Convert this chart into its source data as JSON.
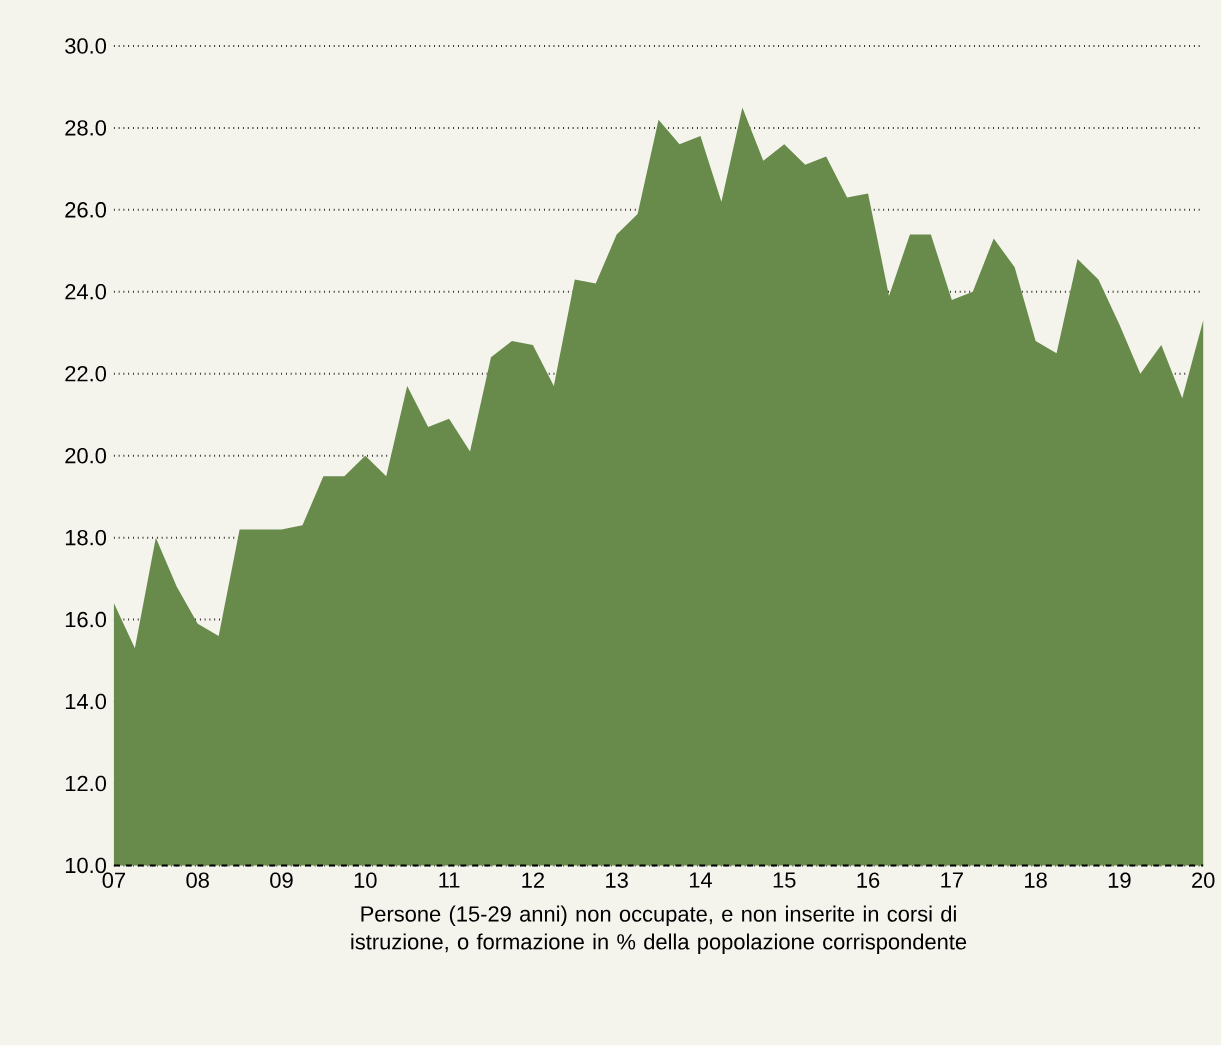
{
  "chart_data": {
    "type": "area",
    "xlabel": "Persone (15-29 anni) non occupate, e non inserite in corsi di istruzione, o formazione in % della popolazione corrispondente",
    "x": [
      2007,
      2007.25,
      2007.5,
      2007.75,
      2008,
      2008.25,
      2008.5,
      2008.75,
      2009,
      2009.25,
      2009.5,
      2009.75,
      2010,
      2010.25,
      2010.5,
      2010.75,
      2011,
      2011.25,
      2011.5,
      2011.75,
      2012,
      2012.25,
      2012.5,
      2012.75,
      2013,
      2013.25,
      2013.5,
      2013.75,
      2014,
      2014.25,
      2014.5,
      2014.75,
      2015,
      2015.25,
      2015.5,
      2015.75,
      2016,
      2016.25,
      2016.5,
      2016.75,
      2017,
      2017.25,
      2017.5,
      2017.75,
      2018,
      2018.25,
      2018.5,
      2018.75,
      2019,
      2019.25,
      2019.5,
      2019.75,
      2020
    ],
    "values": [
      16.4,
      15.3,
      18.0,
      16.8,
      15.9,
      15.6,
      18.2,
      18.2,
      18.2,
      18.3,
      19.5,
      19.5,
      20.0,
      19.5,
      21.7,
      20.7,
      20.9,
      20.1,
      22.4,
      22.8,
      22.7,
      21.7,
      24.3,
      24.2,
      25.4,
      25.9,
      28.2,
      27.6,
      27.8,
      26.2,
      28.5,
      27.2,
      27.6,
      27.1,
      27.3,
      26.3,
      26.4,
      23.9,
      25.4,
      25.4,
      23.8,
      24.0,
      25.3,
      24.6,
      22.8,
      22.5,
      24.8,
      24.3,
      23.2,
      22.0,
      22.7,
      21.4,
      23.3
    ],
    "color": "#688b4b",
    "xlim": [
      2007,
      2020
    ],
    "ylim": [
      10,
      30
    ],
    "xticks": [
      {
        "value": 2007,
        "label": "07"
      },
      {
        "value": 2008,
        "label": "08"
      },
      {
        "value": 2009,
        "label": "09"
      },
      {
        "value": 2010,
        "label": "10"
      },
      {
        "value": 2011,
        "label": "11"
      },
      {
        "value": 2012,
        "label": "12"
      },
      {
        "value": 2013,
        "label": "13"
      },
      {
        "value": 2014,
        "label": "14"
      },
      {
        "value": 2015,
        "label": "15"
      },
      {
        "value": 2016,
        "label": "16"
      },
      {
        "value": 2017,
        "label": "17"
      },
      {
        "value": 2018,
        "label": "18"
      },
      {
        "value": 2019,
        "label": "19"
      },
      {
        "value": 2020,
        "label": "20"
      }
    ],
    "yticks": [
      {
        "value": 10,
        "label": "10.0"
      },
      {
        "value": 12,
        "label": "12.0"
      },
      {
        "value": 14,
        "label": "14.0"
      },
      {
        "value": 16,
        "label": "16.0"
      },
      {
        "value": 18,
        "label": "18.0"
      },
      {
        "value": 20,
        "label": "20.0"
      },
      {
        "value": 22,
        "label": "22.0"
      },
      {
        "value": 24,
        "label": "24.0"
      },
      {
        "value": 26,
        "label": "26.0"
      },
      {
        "value": 28,
        "label": "28.0"
      },
      {
        "value": 30,
        "label": "30.0"
      }
    ],
    "grid": "y"
  }
}
